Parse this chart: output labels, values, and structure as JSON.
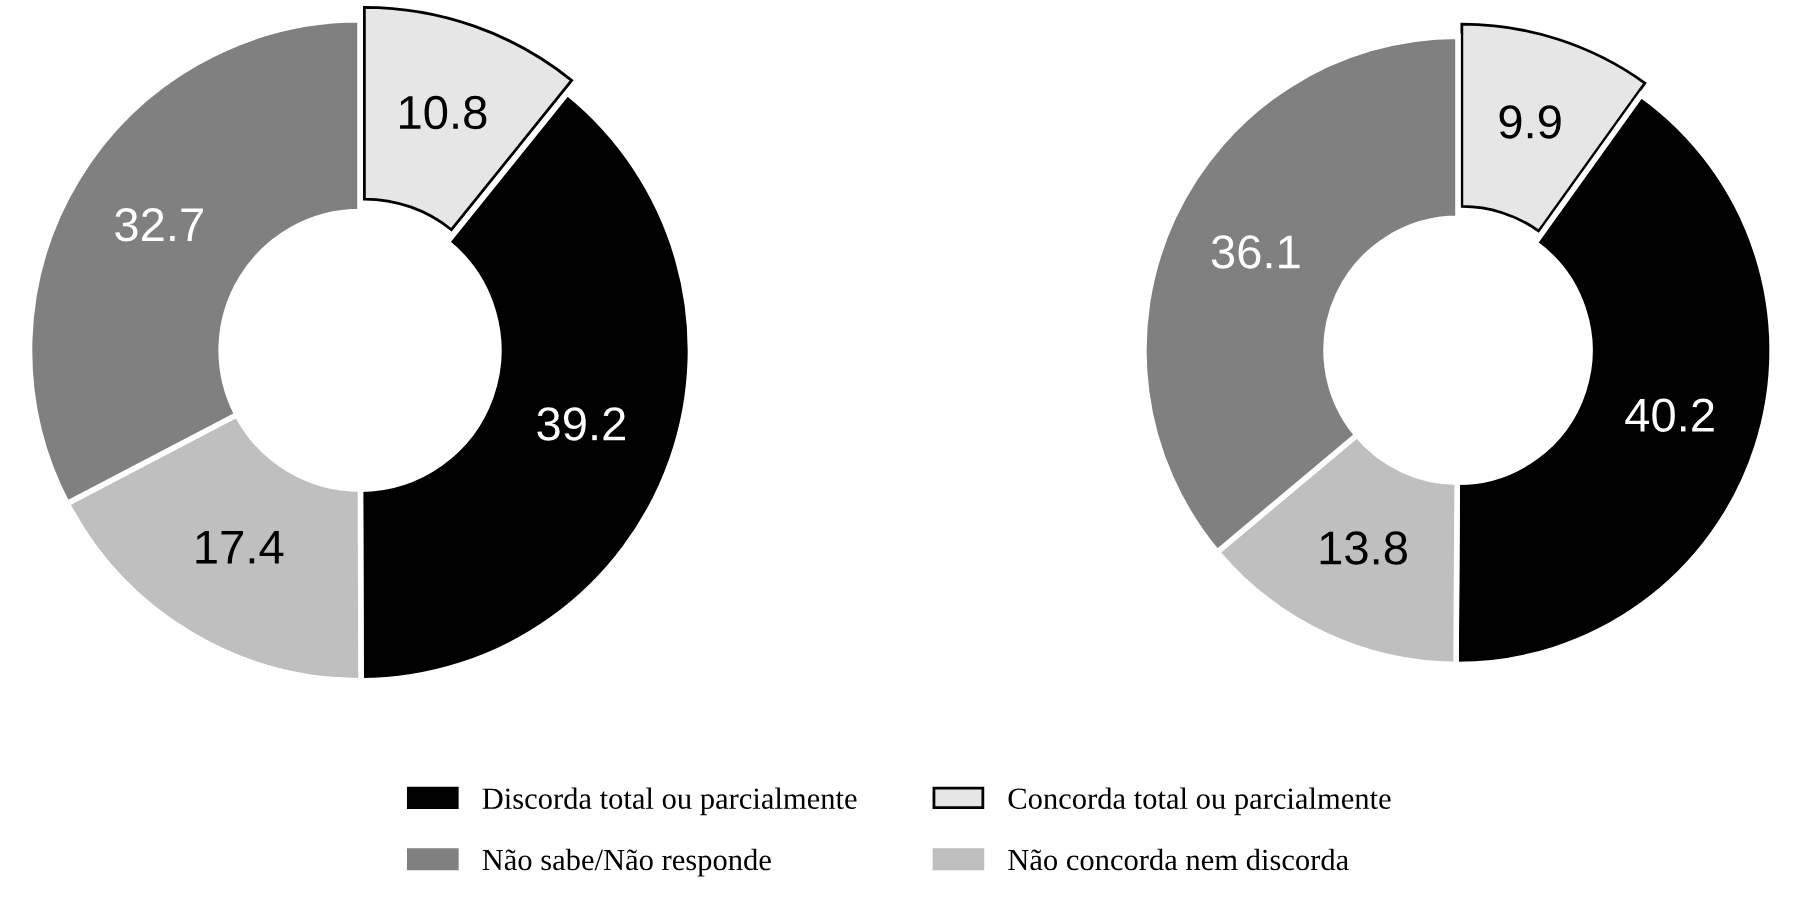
{
  "chart_data": [
    {
      "type": "donut",
      "categories": [
        "Concorda total ou parcialmente",
        "Discorda total ou parcialmente",
        "Não concorda nem discorda",
        "Não sabe/Não responde"
      ],
      "values": [
        10.8,
        39.2,
        17.4,
        32.7
      ],
      "colors": [
        "#e6e6e6",
        "#000000",
        "#bfbfbf",
        "#808080"
      ],
      "data_labels": true,
      "legend": "bottom"
    },
    {
      "type": "donut",
      "categories": [
        null,
        null,
        null,
        null
      ],
      "values": [
        9.9,
        40.2,
        13.8,
        36.1
      ],
      "colors": [
        "#e6e6e6",
        "#000000",
        "#bfbfbf",
        "#808080"
      ],
      "data_labels": true
    }
  ]
}
